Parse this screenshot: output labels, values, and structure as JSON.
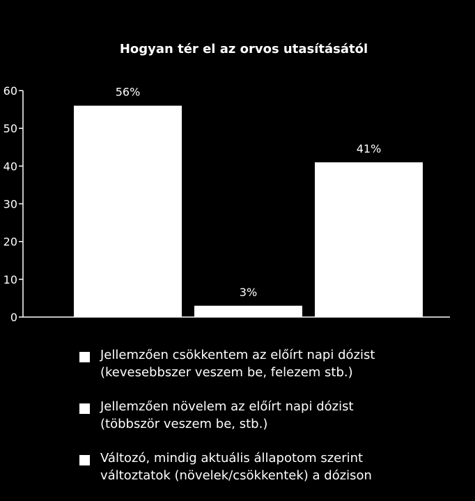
{
  "chart_data": {
    "type": "bar",
    "title": "Hogyan tér el az orvos utasításától",
    "categories": [
      "Jellemzően csökkentem az előírt napi dózist (kevesebbszer veszem be, felezem stb.)",
      "Jellemzően növelem az előírt napi dózist (többször veszem be, stb.)",
      "Változó, mindig aktuális állapotom szerint változtatok (növelek/csökkentek) a dózison"
    ],
    "values": [
      56,
      3,
      41
    ],
    "data_labels": [
      "56%",
      "3%",
      "41%"
    ],
    "yticks": [
      "0",
      "10",
      "20",
      "30",
      "40",
      "50",
      "60"
    ],
    "ylim": [
      0,
      60
    ],
    "bar_color": "#ffffff",
    "background": "#000000",
    "grid": false,
    "legend_position": "bottom"
  },
  "legend": [
    {
      "line1": "Jellemzően csökkentem az előírt napi dózist",
      "line2": "(kevesebbszer veszem be, felezem stb.)"
    },
    {
      "line1": "Jellemzően növelem az előírt napi dózist",
      "line2": "(többször veszem be, stb.)"
    },
    {
      "line1": "Változó, mindig aktuális állapotom szerint",
      "line2": "változtatok (növelek/csökkentek) a dózison"
    }
  ]
}
